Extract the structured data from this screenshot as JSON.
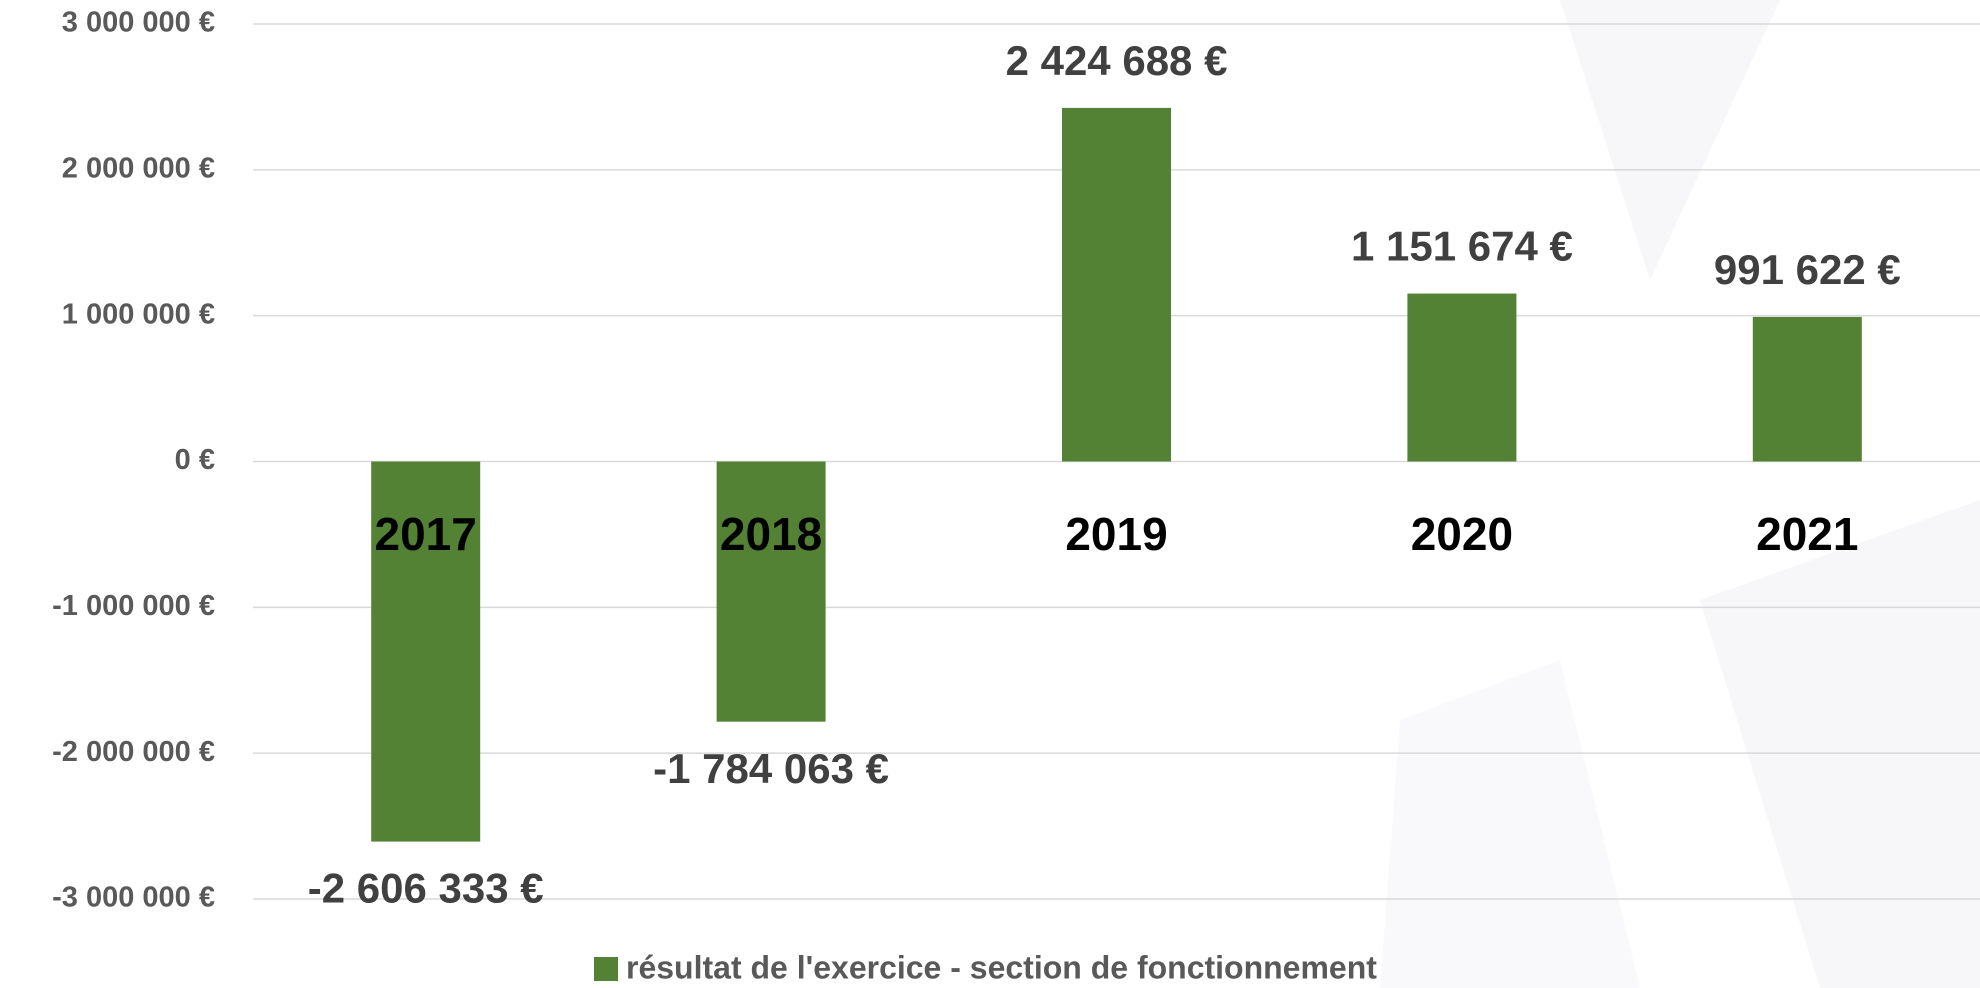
{
  "chart_data": {
    "type": "bar",
    "categories": [
      "2017",
      "2018",
      "2019",
      "2020",
      "2021"
    ],
    "series": [
      {
        "name": "résultat de l'exercice - section de fonctionnement",
        "color": "#548235",
        "values": [
          -2606333,
          -1784063,
          2424688,
          1151674,
          991622
        ],
        "value_labels": [
          "-2 606 333 €",
          "-1 784 063 €",
          "2 424 688 €",
          "1 151 674 €",
          "991 622 €"
        ]
      }
    ],
    "ylim": [
      -3000000,
      3000000
    ],
    "yticks": [
      {
        "value": -3000000,
        "label": "-3 000 000 €"
      },
      {
        "value": -2000000,
        "label": "-2 000 000 €"
      },
      {
        "value": -1000000,
        "label": "-1 000 000 €"
      },
      {
        "value": 0,
        "label": "0 €"
      },
      {
        "value": 1000000,
        "label": "1 000 000 €"
      },
      {
        "value": 2000000,
        "label": "2 000 000 €"
      },
      {
        "value": 3000000,
        "label": "3 000 000 €"
      }
    ],
    "grid": true,
    "legend": "bottom"
  }
}
